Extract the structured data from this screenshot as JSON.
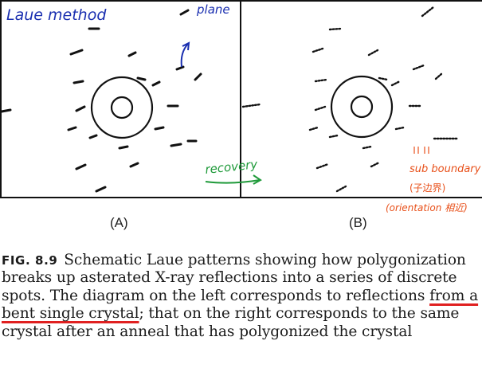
{
  "figure": {
    "panel_a_label": "(A)",
    "panel_b_label": "(B)"
  },
  "annotations": {
    "laue_method": "Laue method",
    "plane": "plane",
    "recovery": "recovery",
    "sub_boundary": "sub boundary",
    "sub_boundary_cjk": "(子边界)",
    "orientation_note": "(orientation 相近)",
    "colors": {
      "blue_ink": "#1a2fb0",
      "green_ink": "#1f9a3a",
      "orange_ink": "#e8501a",
      "red_underline": "#e02020"
    }
  },
  "caption": {
    "fig_number": "FIG. 8.9",
    "text_before": "Schematic Laue patterns showing how polygonization breaks up asterated X-ray reflections into a series of discrete spots. The diagram on the left corresponds to reflections ",
    "text_underlined": "from a bent single crystal",
    "text_after": "; that on the right corresponds to the same crystal after an anneal that has polygonized the crystal"
  }
}
